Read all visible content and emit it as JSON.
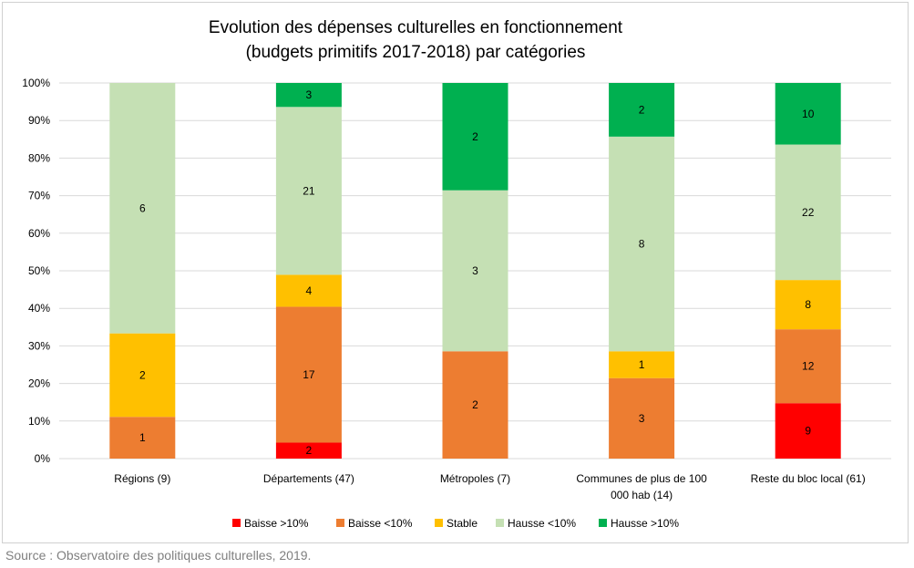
{
  "chart_data": {
    "type": "bar",
    "stacked": true,
    "normalized": true,
    "title": "Evolution des dépenses culturelles en fonctionnement (budgets primitifs 2017-2018) par catégories",
    "title_lines": [
      "Evolution des dépenses culturelles en fonctionnement",
      "(budgets primitifs 2017-2018) par catégories"
    ],
    "categories": [
      [
        "Régions (9)"
      ],
      [
        "Départements (47)"
      ],
      [
        "Métropoles (7)"
      ],
      [
        "Communes de plus de 100",
        "000 hab (14)"
      ],
      [
        "Reste du bloc local (61)"
      ]
    ],
    "ylim": [
      0,
      100
    ],
    "yticks": [
      "0%",
      "10%",
      "20%",
      "30%",
      "40%",
      "50%",
      "60%",
      "70%",
      "80%",
      "90%",
      "100%"
    ],
    "grid": true,
    "legend_position": "bottom",
    "series": [
      {
        "name": "Baisse >10%",
        "color": "#ff0000",
        "values": [
          0,
          2,
          0,
          0,
          9
        ]
      },
      {
        "name": "Baisse <10%",
        "color": "#ed7d31",
        "values": [
          1,
          17,
          2,
          3,
          12
        ]
      },
      {
        "name": "Stable",
        "color": "#ffc000",
        "values": [
          2,
          4,
          0,
          1,
          8
        ]
      },
      {
        "name": "Hausse <10%",
        "color": "#c5e0b4",
        "values": [
          6,
          21,
          3,
          8,
          22
        ]
      },
      {
        "name": "Hausse >10%",
        "color": "#00b050",
        "values": [
          0,
          3,
          2,
          2,
          10
        ]
      }
    ]
  },
  "source": "Source : Observatoire des politiques culturelles, 2019."
}
